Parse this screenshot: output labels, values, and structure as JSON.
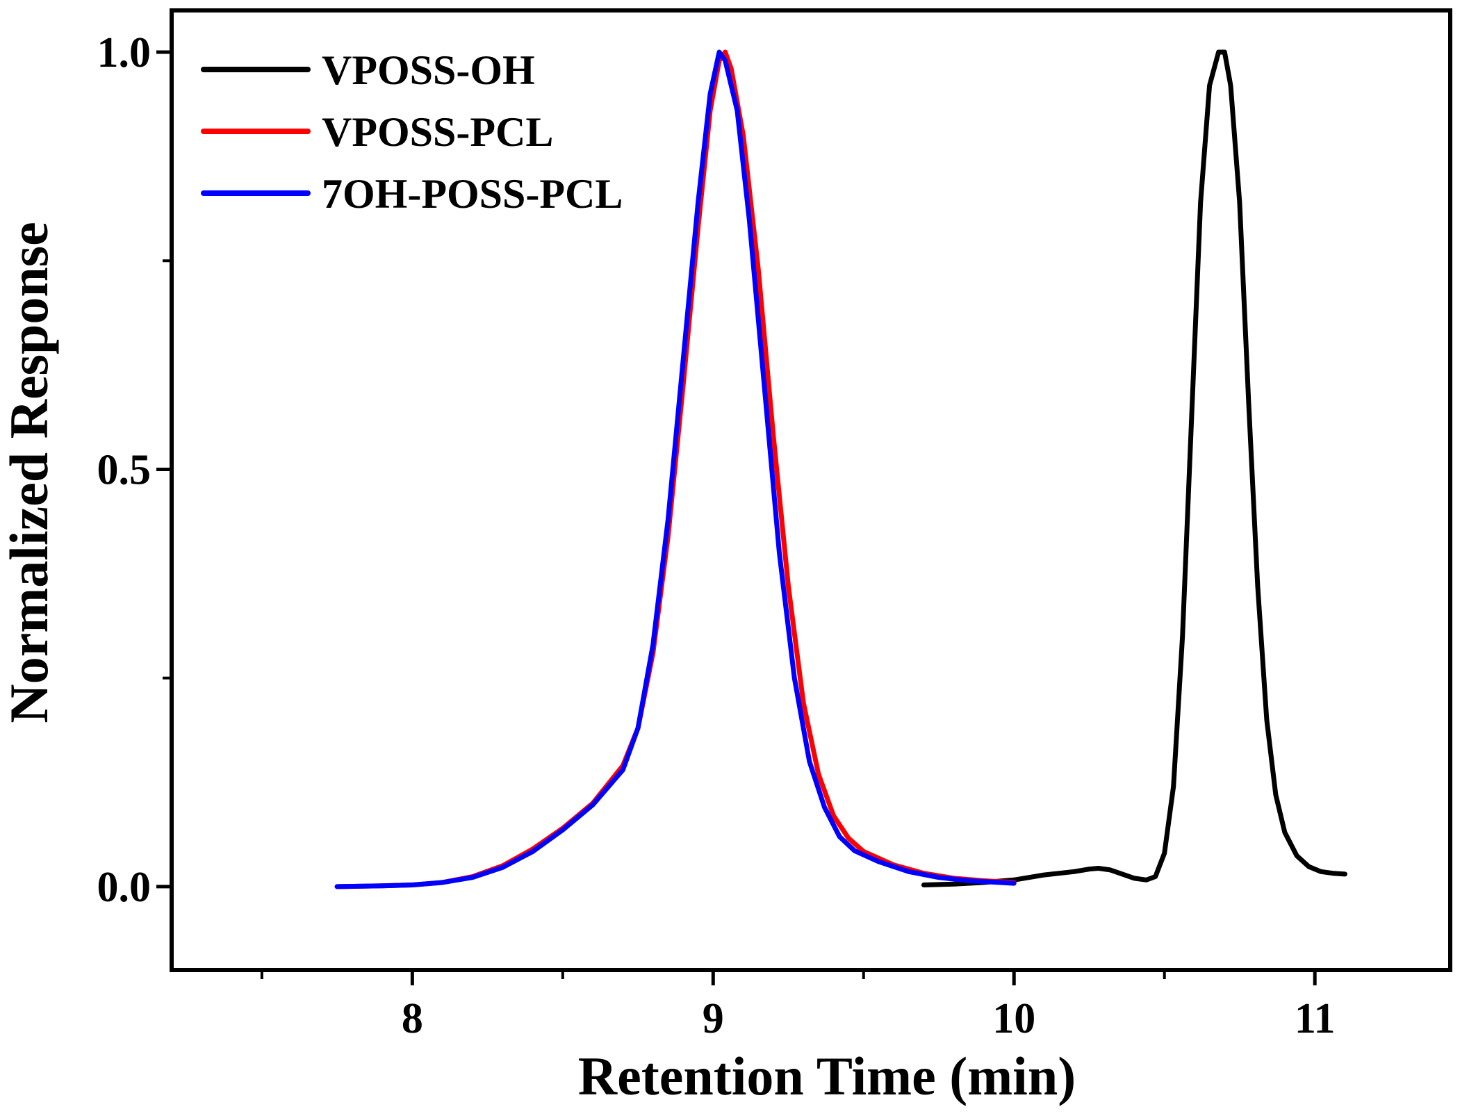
{
  "chart_data": {
    "type": "line",
    "title": "",
    "xlabel": "Retention Time (min)",
    "ylabel": "Normalized Response",
    "xlim": [
      7.2,
      11.45
    ],
    "ylim": [
      -0.1,
      1.05
    ],
    "x_major_ticks": [
      8,
      9,
      10,
      11
    ],
    "x_tick_labels": [
      "8",
      "9",
      "10",
      "11"
    ],
    "x_minor_ticks": [
      7.5,
      8.5,
      9.5,
      10.5
    ],
    "y_major_ticks": [
      0.0,
      0.5,
      1.0
    ],
    "y_tick_labels": [
      "0.0",
      "0.5",
      "1.0"
    ],
    "y_minor_ticks": [
      0.25,
      0.75
    ],
    "grid": false,
    "legend_position": "top-left",
    "series": [
      {
        "name": "VPOSS-OH",
        "color": "#000000",
        "points": [
          [
            9.7,
            0.002
          ],
          [
            9.8,
            0.003
          ],
          [
            9.9,
            0.005
          ],
          [
            10.0,
            0.008
          ],
          [
            10.05,
            0.011
          ],
          [
            10.1,
            0.014
          ],
          [
            10.15,
            0.016
          ],
          [
            10.2,
            0.018
          ],
          [
            10.25,
            0.021
          ],
          [
            10.28,
            0.022
          ],
          [
            10.32,
            0.02
          ],
          [
            10.36,
            0.015
          ],
          [
            10.4,
            0.01
          ],
          [
            10.44,
            0.008
          ],
          [
            10.47,
            0.012
          ],
          [
            10.5,
            0.04
          ],
          [
            10.53,
            0.12
          ],
          [
            10.56,
            0.3
          ],
          [
            10.59,
            0.56
          ],
          [
            10.62,
            0.82
          ],
          [
            10.65,
            0.96
          ],
          [
            10.68,
            1.0
          ],
          [
            10.7,
            1.0
          ],
          [
            10.72,
            0.96
          ],
          [
            10.75,
            0.82
          ],
          [
            10.78,
            0.58
          ],
          [
            10.81,
            0.36
          ],
          [
            10.84,
            0.2
          ],
          [
            10.87,
            0.11
          ],
          [
            10.9,
            0.065
          ],
          [
            10.94,
            0.037
          ],
          [
            10.98,
            0.024
          ],
          [
            11.02,
            0.018
          ],
          [
            11.06,
            0.016
          ],
          [
            11.1,
            0.015
          ]
        ]
      },
      {
        "name": "VPOSS-PCL",
        "color": "#ff0000",
        "points": [
          [
            7.75,
            0.0
          ],
          [
            7.9,
            0.001
          ],
          [
            8.0,
            0.002
          ],
          [
            8.1,
            0.005
          ],
          [
            8.2,
            0.012
          ],
          [
            8.3,
            0.025
          ],
          [
            8.4,
            0.045
          ],
          [
            8.5,
            0.07
          ],
          [
            8.6,
            0.1
          ],
          [
            8.7,
            0.145
          ],
          [
            8.75,
            0.19
          ],
          [
            8.8,
            0.28
          ],
          [
            8.85,
            0.42
          ],
          [
            8.9,
            0.6
          ],
          [
            8.95,
            0.79
          ],
          [
            8.99,
            0.93
          ],
          [
            9.02,
            0.99
          ],
          [
            9.04,
            1.0
          ],
          [
            9.06,
            0.98
          ],
          [
            9.1,
            0.9
          ],
          [
            9.15,
            0.74
          ],
          [
            9.2,
            0.54
          ],
          [
            9.25,
            0.36
          ],
          [
            9.3,
            0.22
          ],
          [
            9.35,
            0.135
          ],
          [
            9.4,
            0.085
          ],
          [
            9.45,
            0.058
          ],
          [
            9.5,
            0.042
          ],
          [
            9.6,
            0.026
          ],
          [
            9.7,
            0.016
          ],
          [
            9.8,
            0.01
          ],
          [
            9.9,
            0.007
          ],
          [
            10.0,
            0.005
          ]
        ]
      },
      {
        "name": "7OH-POSS-PCL",
        "color": "#0000ff",
        "points": [
          [
            7.75,
            0.0
          ],
          [
            7.9,
            0.001
          ],
          [
            8.0,
            0.002
          ],
          [
            8.1,
            0.005
          ],
          [
            8.2,
            0.011
          ],
          [
            8.3,
            0.023
          ],
          [
            8.4,
            0.042
          ],
          [
            8.5,
            0.068
          ],
          [
            8.6,
            0.098
          ],
          [
            8.7,
            0.14
          ],
          [
            8.75,
            0.19
          ],
          [
            8.8,
            0.29
          ],
          [
            8.85,
            0.44
          ],
          [
            8.9,
            0.63
          ],
          [
            8.95,
            0.82
          ],
          [
            8.99,
            0.95
          ],
          [
            9.02,
            1.0
          ],
          [
            9.04,
            0.99
          ],
          [
            9.08,
            0.93
          ],
          [
            9.12,
            0.8
          ],
          [
            9.17,
            0.6
          ],
          [
            9.22,
            0.4
          ],
          [
            9.27,
            0.25
          ],
          [
            9.32,
            0.15
          ],
          [
            9.37,
            0.095
          ],
          [
            9.42,
            0.06
          ],
          [
            9.47,
            0.043
          ],
          [
            9.55,
            0.03
          ],
          [
            9.65,
            0.018
          ],
          [
            9.75,
            0.011
          ],
          [
            9.85,
            0.007
          ],
          [
            9.95,
            0.005
          ],
          [
            10.0,
            0.004
          ]
        ]
      }
    ]
  }
}
